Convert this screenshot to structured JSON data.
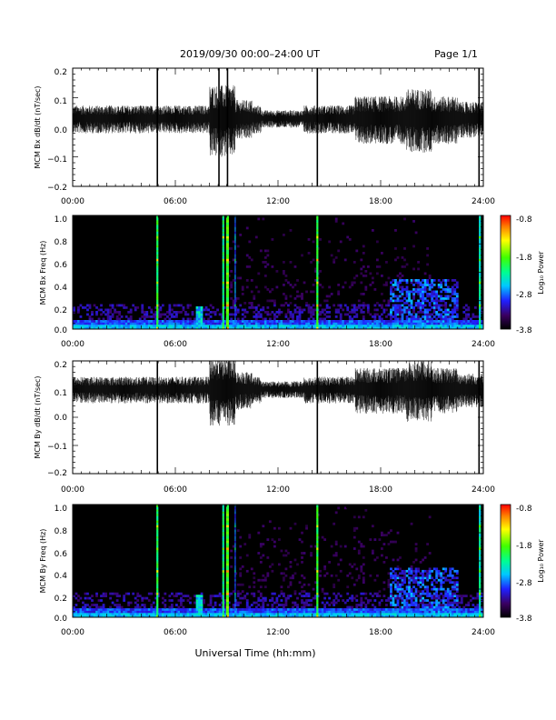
{
  "header": {
    "title": "2019/09/30  00:00–24:00 UT",
    "page": "Page 1/1"
  },
  "footer": {
    "xlabel": "Universal Time (hh:mm)"
  },
  "colorbar": {
    "label": "Log₁₀ Power",
    "ticks": [
      "-0.8",
      "-1.8",
      "-2.8",
      "-3.8"
    ],
    "range": [
      -3.8,
      -0.8
    ]
  },
  "chart_data": [
    {
      "type": "line",
      "ylabel": "MCM Bx dB/dt (nT/sec)",
      "xlim": [
        0,
        24
      ],
      "ylim": [
        -0.2,
        0.2
      ],
      "xticks": [
        "00:00",
        "06:00",
        "12:00",
        "18:00",
        "24:00"
      ],
      "yticks": [
        "0.2",
        "0.1",
        "0.0",
        "−0.1",
        "−0.2"
      ],
      "baseline": 0.03,
      "spikes_h": [
        4.95,
        8.55,
        9.05,
        14.3,
        23.75
      ]
    },
    {
      "type": "heatmap",
      "ylabel": "MCM Bx Freq (Hz)",
      "xlim": [
        0,
        24
      ],
      "ylim": [
        0,
        1.0
      ],
      "xticks": [
        "00:00",
        "06:00",
        "12:00",
        "18:00",
        "24:00"
      ],
      "yticks": [
        "1.0",
        "0.8",
        "0.6",
        "0.4",
        "0.2",
        "0.0"
      ],
      "colorbar_label": "Log₁₀ Power",
      "colorbar_ticks": [
        "-0.8",
        "-1.8",
        "-2.8",
        "-3.8"
      ]
    },
    {
      "type": "line",
      "ylabel": "MCM By dB/dt (nT/sec)",
      "xlim": [
        0,
        24
      ],
      "ylim": [
        -0.2,
        0.2
      ],
      "xticks": [
        "00:00",
        "06:00",
        "12:00",
        "18:00",
        "24:00"
      ],
      "yticks": [
        "0.2",
        "0.1",
        "0.0",
        "−0.1",
        "−0.2"
      ],
      "baseline": 0.1,
      "spikes_h": [
        4.95,
        14.3,
        23.75
      ]
    },
    {
      "type": "heatmap",
      "ylabel": "MCM By Freq (Hz)",
      "xlim": [
        0,
        24
      ],
      "ylim": [
        0,
        1.0
      ],
      "xticks": [
        "00:00",
        "06:00",
        "12:00",
        "18:00",
        "24:00"
      ],
      "yticks": [
        "1.0",
        "0.8",
        "0.6",
        "0.4",
        "0.2",
        "0.0"
      ],
      "colorbar_label": "Log₁₀ Power",
      "colorbar_ticks": [
        "-0.8",
        "-1.8",
        "-2.8",
        "-3.8"
      ]
    }
  ]
}
